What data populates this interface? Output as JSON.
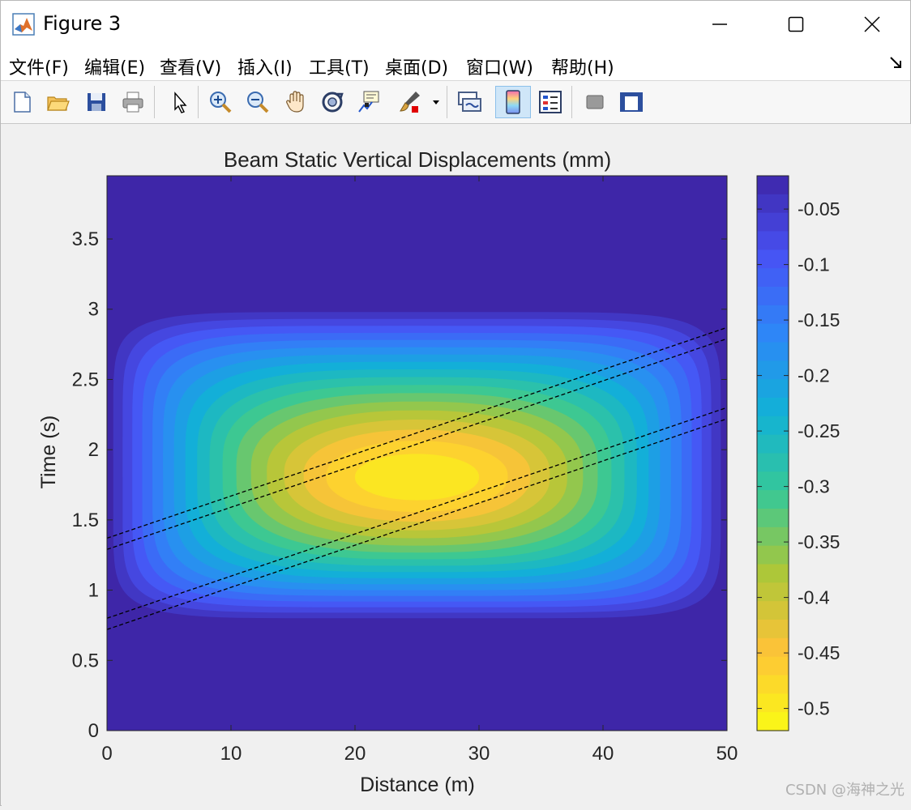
{
  "window": {
    "title": "Figure 3",
    "controls": [
      "minimize",
      "maximize",
      "close"
    ]
  },
  "menu": {
    "items": [
      "文件(F)",
      "编辑(E)",
      "查看(V)",
      "插入(I)",
      "工具(T)",
      "桌面(D)",
      "窗口(W)",
      "帮助(H)"
    ]
  },
  "toolbar": {
    "buttons": [
      {
        "icon": "new-figure-icon",
        "active": false
      },
      {
        "icon": "open-file-icon",
        "active": false
      },
      {
        "icon": "save-icon",
        "active": false
      },
      {
        "icon": "print-icon",
        "active": false
      },
      {
        "icon": "edit-plot-arrow-icon",
        "active": false
      },
      {
        "icon": "zoom-in-icon",
        "active": false
      },
      {
        "icon": "zoom-out-icon",
        "active": false
      },
      {
        "icon": "pan-hand-icon",
        "active": false
      },
      {
        "icon": "rotate-3d-icon",
        "active": false
      },
      {
        "icon": "data-cursor-icon",
        "active": false
      },
      {
        "icon": "brush-icon",
        "active": false
      },
      {
        "icon": "link-plot-icon",
        "active": false
      },
      {
        "icon": "colorbar-icon",
        "active": true
      },
      {
        "icon": "legend-icon",
        "active": false
      },
      {
        "icon": "hide-plot-tools-icon",
        "active": false
      },
      {
        "icon": "show-plot-tools-icon",
        "active": false
      }
    ]
  },
  "chart_data": {
    "type": "heatmap",
    "subtype": "filled-contour",
    "title": "Beam Static Vertical Displacements (mm)",
    "xlabel": "Distance (m)",
    "ylabel": "Time (s)",
    "xlim": [
      0,
      50
    ],
    "ylim": [
      0,
      3.95
    ],
    "xticks": [
      0,
      10,
      20,
      30,
      40,
      50
    ],
    "yticks": [
      0,
      0.5,
      1,
      1.5,
      2,
      2.5,
      3,
      3.5
    ],
    "colormap": "parula",
    "colorbar": {
      "location": "right",
      "range": [
        -0.52,
        -0.02
      ],
      "ticks": [
        -0.05,
        -0.1,
        -0.15,
        -0.2,
        -0.25,
        -0.3,
        -0.35,
        -0.4,
        -0.45,
        -0.5
      ],
      "tick_labels": [
        "-0.05",
        "-0.1",
        "-0.15",
        "-0.2",
        "-0.25",
        "-0.3",
        "-0.35",
        "-0.4",
        "-0.45",
        "-0.5"
      ]
    },
    "field": {
      "background_value": -0.02,
      "peak_value": -0.52,
      "peak_location": {
        "x": 25,
        "y": 1.8
      },
      "nonzero_time_range": [
        0.8,
        2.8
      ],
      "nonzero_distance_range": [
        0.5,
        49.5
      ]
    },
    "axle_lines": [
      {
        "x": [
          0,
          50
        ],
        "y": [
          1.37,
          2.87
        ]
      },
      {
        "x": [
          0,
          50
        ],
        "y": [
          1.29,
          2.79
        ]
      },
      {
        "x": [
          0,
          50
        ],
        "y": [
          0.8,
          2.3
        ]
      },
      {
        "x": [
          0,
          50
        ],
        "y": [
          0.72,
          2.22
        ]
      }
    ],
    "line_style": "dashed",
    "line_color": "#000000"
  },
  "watermark": "CSDN @海神之光"
}
